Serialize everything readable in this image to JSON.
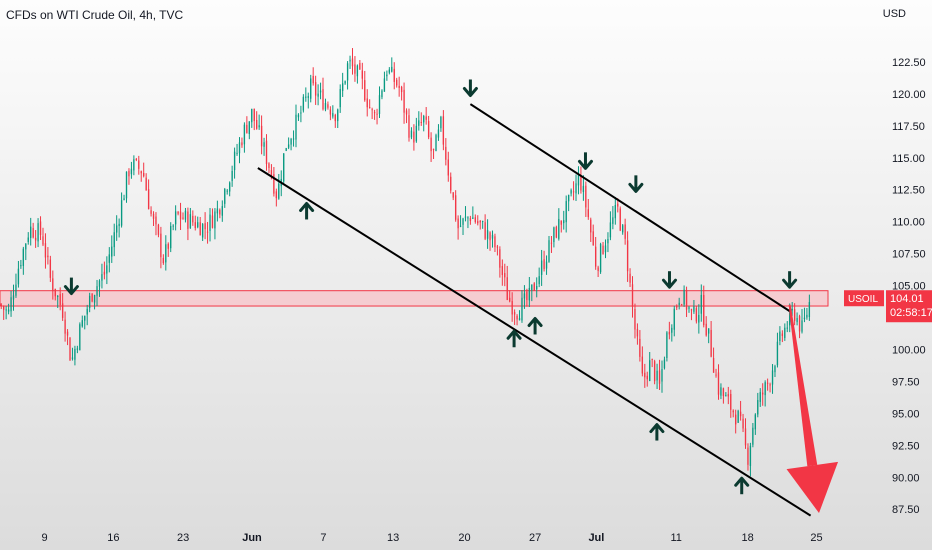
{
  "chart_title": "CFDs on WTI Crude Oil, 4h, TVC",
  "chart_data": {
    "type": "candlestick",
    "title": "CFDs on WTI Crude Oil, 4h, TVC",
    "currency": "USD",
    "symbol": "USOIL",
    "last_price": "104.01",
    "countdown": "02:58:17",
    "ylim": [
      86.5,
      125
    ],
    "y_ticks": [
      "122.50",
      "120.00",
      "117.50",
      "115.00",
      "112.50",
      "110.00",
      "107.50",
      "105.00",
      "102.50",
      "100.00",
      "97.50",
      "95.00",
      "92.50",
      "90.00",
      "87.50"
    ],
    "x_ticks": [
      {
        "label": "9",
        "bold": false,
        "t": 0.053
      },
      {
        "label": "16",
        "bold": false,
        "t": 0.135
      },
      {
        "label": "23",
        "bold": false,
        "t": 0.218
      },
      {
        "label": "Jun",
        "bold": true,
        "t": 0.3
      },
      {
        "label": "7",
        "bold": false,
        "t": 0.385
      },
      {
        "label": "13",
        "bold": false,
        "t": 0.468
      },
      {
        "label": "20",
        "bold": false,
        "t": 0.553
      },
      {
        "label": "27",
        "bold": false,
        "t": 0.637
      },
      {
        "label": "Jul",
        "bold": true,
        "t": 0.71
      },
      {
        "label": "11",
        "bold": false,
        "t": 0.805
      },
      {
        "label": "18",
        "bold": false,
        "t": 0.89
      },
      {
        "label": "25",
        "bold": false,
        "t": 0.972
      }
    ],
    "price_path": [
      {
        "t": 0.0,
        "p": 103.5
      },
      {
        "t": 0.01,
        "p": 102.8
      },
      {
        "t": 0.02,
        "p": 106.0
      },
      {
        "t": 0.035,
        "p": 109.5
      },
      {
        "t": 0.05,
        "p": 109.0
      },
      {
        "t": 0.06,
        "p": 105.5
      },
      {
        "t": 0.075,
        "p": 103.0
      },
      {
        "t": 0.085,
        "p": 99.0
      },
      {
        "t": 0.095,
        "p": 101.5
      },
      {
        "t": 0.11,
        "p": 104.5
      },
      {
        "t": 0.125,
        "p": 106.0
      },
      {
        "t": 0.14,
        "p": 110.0
      },
      {
        "t": 0.155,
        "p": 114.5
      },
      {
        "t": 0.17,
        "p": 114.0
      },
      {
        "t": 0.18,
        "p": 110.5
      },
      {
        "t": 0.195,
        "p": 107.0
      },
      {
        "t": 0.21,
        "p": 110.5
      },
      {
        "t": 0.23,
        "p": 110.0
      },
      {
        "t": 0.245,
        "p": 109.5
      },
      {
        "t": 0.26,
        "p": 111.0
      },
      {
        "t": 0.275,
        "p": 114.0
      },
      {
        "t": 0.29,
        "p": 117.0
      },
      {
        "t": 0.3,
        "p": 118.5
      },
      {
        "t": 0.31,
        "p": 116.5
      },
      {
        "t": 0.32,
        "p": 114.5
      },
      {
        "t": 0.33,
        "p": 112.0
      },
      {
        "t": 0.34,
        "p": 116.0
      },
      {
        "t": 0.355,
        "p": 118.0
      },
      {
        "t": 0.37,
        "p": 120.5
      },
      {
        "t": 0.385,
        "p": 119.5
      },
      {
        "t": 0.4,
        "p": 118.5
      },
      {
        "t": 0.415,
        "p": 122.5
      },
      {
        "t": 0.43,
        "p": 121.0
      },
      {
        "t": 0.445,
        "p": 118.0
      },
      {
        "t": 0.46,
        "p": 122.0
      },
      {
        "t": 0.475,
        "p": 120.5
      },
      {
        "t": 0.49,
        "p": 116.5
      },
      {
        "t": 0.505,
        "p": 118.0
      },
      {
        "t": 0.515,
        "p": 115.0
      },
      {
        "t": 0.525,
        "p": 117.5
      },
      {
        "t": 0.535,
        "p": 113.5
      },
      {
        "t": 0.545,
        "p": 109.5
      },
      {
        "t": 0.56,
        "p": 110.5
      },
      {
        "t": 0.575,
        "p": 109.5
      },
      {
        "t": 0.59,
        "p": 108.0
      },
      {
        "t": 0.605,
        "p": 104.0
      },
      {
        "t": 0.615,
        "p": 103.0
      },
      {
        "t": 0.63,
        "p": 104.0
      },
      {
        "t": 0.645,
        "p": 106.5
      },
      {
        "t": 0.66,
        "p": 109.0
      },
      {
        "t": 0.675,
        "p": 111.0
      },
      {
        "t": 0.69,
        "p": 113.5
      },
      {
        "t": 0.7,
        "p": 110.5
      },
      {
        "t": 0.71,
        "p": 106.5
      },
      {
        "t": 0.72,
        "p": 108.5
      },
      {
        "t": 0.735,
        "p": 111.0
      },
      {
        "t": 0.745,
        "p": 108.0
      },
      {
        "t": 0.755,
        "p": 102.0
      },
      {
        "t": 0.765,
        "p": 97.5
      },
      {
        "t": 0.775,
        "p": 99.0
      },
      {
        "t": 0.785,
        "p": 97.0
      },
      {
        "t": 0.795,
        "p": 101.5
      },
      {
        "t": 0.81,
        "p": 104.5
      },
      {
        "t": 0.825,
        "p": 102.5
      },
      {
        "t": 0.835,
        "p": 103.5
      },
      {
        "t": 0.845,
        "p": 100.5
      },
      {
        "t": 0.855,
        "p": 97.0
      },
      {
        "t": 0.87,
        "p": 95.5
      },
      {
        "t": 0.88,
        "p": 94.5
      },
      {
        "t": 0.89,
        "p": 91.5
      },
      {
        "t": 0.9,
        "p": 95.5
      },
      {
        "t": 0.915,
        "p": 97.5
      },
      {
        "t": 0.93,
        "p": 101.0
      },
      {
        "t": 0.945,
        "p": 103.0
      },
      {
        "t": 0.955,
        "p": 101.5
      },
      {
        "t": 0.965,
        "p": 104.0
      }
    ],
    "resistance_zone": [
      103.4,
      104.6
    ],
    "channel_upper": [
      {
        "t": 0.56,
        "p": 119.2
      },
      {
        "t": 0.94,
        "p": 103.0
      }
    ],
    "channel_lower": [
      {
        "t": 0.307,
        "p": 114.2
      },
      {
        "t": 0.965,
        "p": 87.0
      }
    ],
    "arrows_down": [
      {
        "t": 0.085,
        "p": 105.0
      },
      {
        "t": 0.56,
        "p": 120.5
      },
      {
        "t": 0.697,
        "p": 114.8
      },
      {
        "t": 0.757,
        "p": 113.0
      },
      {
        "t": 0.797,
        "p": 105.5
      },
      {
        "t": 0.94,
        "p": 105.5
      }
    ],
    "arrows_up": [
      {
        "t": 0.365,
        "p": 110.8
      },
      {
        "t": 0.612,
        "p": 100.8
      },
      {
        "t": 0.637,
        "p": 101.8
      },
      {
        "t": 0.782,
        "p": 93.5
      },
      {
        "t": 0.883,
        "p": 89.3
      }
    ],
    "forecast_arrow": {
      "from": {
        "t": 0.94,
        "p": 103.5
      },
      "to": {
        "t": 0.975,
        "p": 87.2
      }
    },
    "colors": {
      "up": "#089981",
      "down": "#f23645",
      "channel": "#000000",
      "arrow": "#0b3a30",
      "zone_fill": "#f7c8cc",
      "zone_edge": "#f23645",
      "forecast": "#f23645",
      "bg_top": "#fdfdfd",
      "bg_bottom": "#dcdcdc"
    }
  }
}
